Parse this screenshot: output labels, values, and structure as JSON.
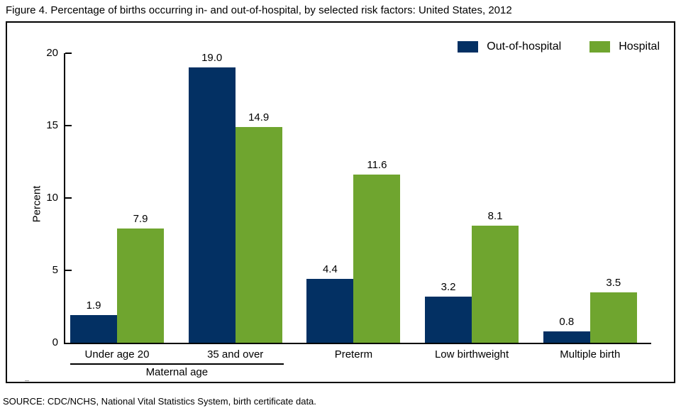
{
  "title": "Figure 4. Percentage of births occurring in- and out-of-hospital, by selected risk factors: United States, 2012",
  "source": "SOURCE: CDC/NCHS, National Vital Statistics System, birth certificate data.",
  "colors": {
    "out_of_hospital": "#033063",
    "hospital": "#6fa52f",
    "axis": "#000000"
  },
  "chart_data": {
    "type": "bar",
    "title": "Figure 4. Percentage of births occurring in- and out-of-hospital, by selected risk factors: United States, 2012",
    "categories": [
      "Under age 20",
      "35 and over",
      "Preterm",
      "Low birthweight",
      "Multiple birth"
    ],
    "series": [
      {
        "name": "Out-of-hospital",
        "color": "#033063",
        "values": [
          1.9,
          19.0,
          4.4,
          3.2,
          0.8
        ]
      },
      {
        "name": "Hospital",
        "color": "#6fa52f",
        "values": [
          7.9,
          14.9,
          11.6,
          8.1,
          3.5
        ]
      }
    ],
    "xlabel": "",
    "ylabel": "Percent",
    "ylim": [
      0,
      20
    ],
    "yticks": [
      0,
      5,
      10,
      15,
      20
    ],
    "value_labels": true,
    "grid": false,
    "legend_position": "top-right",
    "category_group": {
      "label": "Maternal age",
      "span_categories": [
        "Under age 20",
        "35 and over"
      ]
    }
  }
}
